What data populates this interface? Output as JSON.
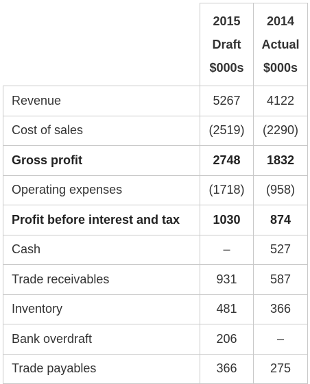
{
  "header": {
    "col2015": [
      "2015",
      "Draft",
      "$000s"
    ],
    "col2014": [
      "2014",
      "Actual",
      "$000s"
    ]
  },
  "rows": [
    {
      "label": "Revenue",
      "v2015": "5267",
      "v2014": "4122",
      "bold": false
    },
    {
      "label": "Cost of sales",
      "v2015": "(2519)",
      "v2014": "(2290)",
      "bold": false
    },
    {
      "label": "Gross profit",
      "v2015": "2748",
      "v2014": "1832",
      "bold": true
    },
    {
      "label": "Operating expenses",
      "v2015": "(1718)",
      "v2014": "(958)",
      "bold": false
    },
    {
      "label": "Profit before interest and tax",
      "v2015": "1030",
      "v2014": "874",
      "bold": true
    },
    {
      "label": "Cash",
      "v2015": "–",
      "v2014": "527",
      "bold": false
    },
    {
      "label": "Trade receivables",
      "v2015": "931",
      "v2014": "587",
      "bold": false
    },
    {
      "label": "Inventory",
      "v2015": "481",
      "v2014": "366",
      "bold": false
    },
    {
      "label": "Bank overdraft",
      "v2015": "206",
      "v2014": "–",
      "bold": false
    },
    {
      "label": "Trade payables",
      "v2015": "366",
      "v2014": "275",
      "bold": false
    }
  ]
}
